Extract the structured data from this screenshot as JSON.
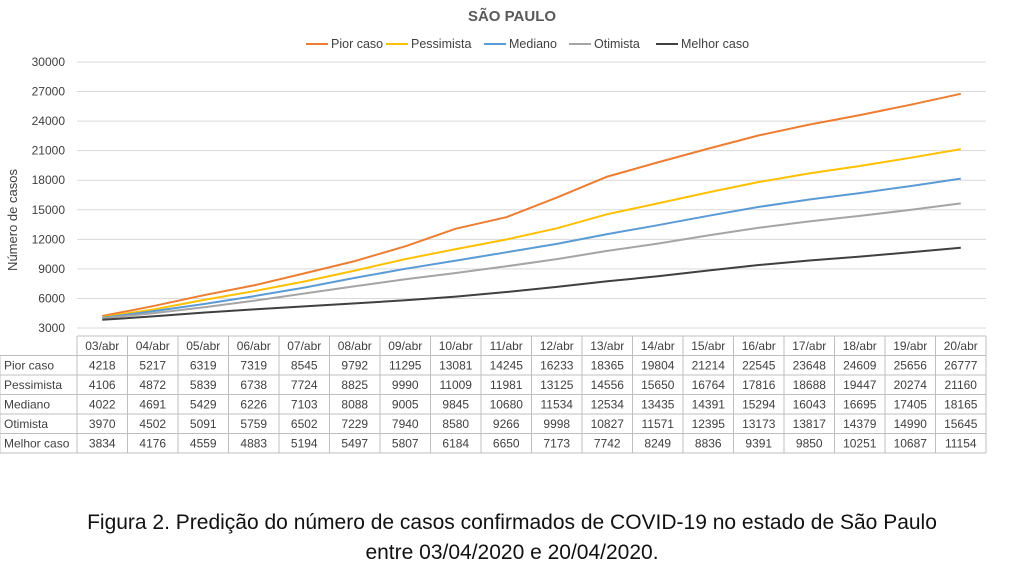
{
  "chart_data": {
    "type": "line",
    "title": "SÃO PAULO",
    "ylabel": "Número de casos",
    "xlabel": "",
    "ylim": [
      3000,
      30000
    ],
    "yticks": [
      3000,
      6000,
      9000,
      12000,
      15000,
      18000,
      21000,
      24000,
      27000,
      30000
    ],
    "grid": "horizontal",
    "legend": "top-center",
    "data_table": true,
    "categories": [
      "03/abr",
      "04/abr",
      "05/abr",
      "06/abr",
      "07/abr",
      "08/abr",
      "09/abr",
      "10/abr",
      "11/abr",
      "12/abr",
      "13/abr",
      "14/abr",
      "15/abr",
      "16/abr",
      "17/abr",
      "18/abr",
      "19/abr",
      "20/abr"
    ],
    "series": [
      {
        "name": "Pior caso",
        "color": "#ED7D31",
        "values": [
          4218,
          5217,
          6319,
          7319,
          8545,
          9792,
          11295,
          13081,
          14245,
          16233,
          18365,
          19804,
          21214,
          22545,
          23648,
          24609,
          25656,
          26777
        ]
      },
      {
        "name": "Pessimista",
        "color": "#FFC000",
        "values": [
          4106,
          4872,
          5839,
          6738,
          7724,
          8825,
          9990,
          11009,
          11981,
          13125,
          14556,
          15650,
          16764,
          17816,
          18688,
          19447,
          20274,
          21160
        ]
      },
      {
        "name": "Mediano",
        "color": "#5B9BD5",
        "values": [
          4022,
          4691,
          5429,
          6226,
          7103,
          8088,
          9005,
          9845,
          10680,
          11534,
          12534,
          13435,
          14391,
          15294,
          16043,
          16695,
          17405,
          18165
        ]
      },
      {
        "name": "Otimista",
        "color": "#A5A5A5",
        "values": [
          3970,
          4502,
          5091,
          5759,
          6502,
          7229,
          7940,
          8580,
          9266,
          9998,
          10827,
          11571,
          12395,
          13173,
          13817,
          14379,
          14990,
          15645
        ]
      },
      {
        "name": "Melhor caso",
        "color": "#404040",
        "values": [
          3834,
          4176,
          4559,
          4883,
          5194,
          5497,
          5807,
          6184,
          6650,
          7173,
          7742,
          8249,
          8836,
          9391,
          9850,
          10251,
          10687,
          11154
        ]
      }
    ]
  },
  "caption": {
    "line1": "Figura 2. Predição do número de casos confirmados de COVID-19 no estado de São Paulo",
    "line2": "entre 03/04/2020 e 20/04/2020."
  }
}
